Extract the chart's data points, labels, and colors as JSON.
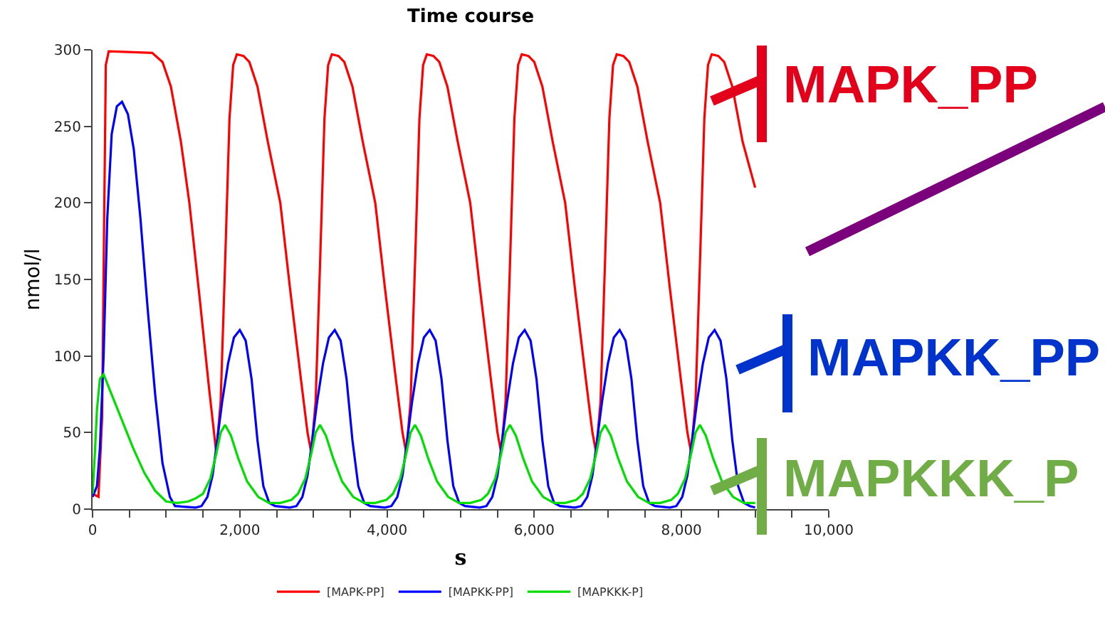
{
  "chart_data": {
    "type": "line",
    "title": "Time course",
    "xlabel": "s",
    "ylabel": "nmol/l",
    "xlim": [
      0,
      10000
    ],
    "xticks": [
      {
        "value": 0,
        "label": "0"
      },
      {
        "value": 500,
        "label": null
      },
      {
        "value": 1000,
        "label": null
      },
      {
        "value": 1500,
        "label": null
      },
      {
        "value": 2000,
        "label": "2,000"
      },
      {
        "value": 2500,
        "label": null
      },
      {
        "value": 3000,
        "label": null
      },
      {
        "value": 3500,
        "label": null
      },
      {
        "value": 4000,
        "label": "4,000"
      },
      {
        "value": 4500,
        "label": null
      },
      {
        "value": 5000,
        "label": null
      },
      {
        "value": 5500,
        "label": null
      },
      {
        "value": 6000,
        "label": "6,000"
      },
      {
        "value": 6500,
        "label": null
      },
      {
        "value": 7000,
        "label": null
      },
      {
        "value": 7500,
        "label": null
      },
      {
        "value": 8000,
        "label": "8,000"
      },
      {
        "value": 8500,
        "label": null
      },
      {
        "value": 9000,
        "label": null
      },
      {
        "value": 9500,
        "label": null
      },
      {
        "value": 10000,
        "label": "10,000"
      }
    ],
    "ylim": [
      0,
      300
    ],
    "yticks": [
      0,
      50,
      100,
      150,
      200,
      250,
      300
    ],
    "grid": false,
    "legend": "bottom",
    "marker": "none",
    "line_style": "solid",
    "annotations": [
      "MAPK_PP",
      "MAPKK_PP",
      "MAPKKK_P"
    ],
    "series": [
      {
        "name": "[MAPK-PP]",
        "color": "#ff0000",
        "x": [
          0,
          80,
          130,
          160,
          180,
          220,
          810,
          950,
          1064,
          1200,
          1315,
          1450,
          1580,
          1680,
          1740,
          1800,
          1860,
          1910,
          1960,
          2050,
          2130,
          2240,
          2380,
          2550,
          2680,
          2830,
          2920,
          2970,
          3030,
          3090,
          3150,
          3200,
          3250,
          3340,
          3420,
          3530,
          3670,
          3840,
          3970,
          4120,
          4210,
          4260,
          4320,
          4380,
          4440,
          4490,
          4540,
          4630,
          4710,
          4820,
          4960,
          5130,
          5260,
          5410,
          5500,
          5550,
          5610,
          5670,
          5730,
          5780,
          5830,
          5920,
          6000,
          6110,
          6250,
          6420,
          6550,
          6700,
          6790,
          6840,
          6900,
          6960,
          7020,
          7070,
          7120,
          7210,
          7290,
          7400,
          7540,
          7710,
          7840,
          7990,
          8080,
          8130,
          8190,
          8250,
          8310,
          8360,
          8410,
          8500,
          8580,
          8690,
          8830,
          9000
        ],
        "values": [
          10,
          8,
          60,
          200,
          290,
          299,
          298,
          292,
          276,
          240,
          200,
          140,
          80,
          37,
          70,
          160,
          255,
          290,
          297,
          296,
          292,
          276,
          240,
          200,
          145,
          85,
          50,
          37,
          70,
          160,
          255,
          290,
          297,
          296,
          292,
          276,
          240,
          200,
          145,
          85,
          50,
          37,
          70,
          160,
          255,
          290,
          297,
          296,
          292,
          276,
          240,
          200,
          145,
          85,
          50,
          37,
          70,
          160,
          255,
          290,
          297,
          296,
          292,
          276,
          240,
          200,
          145,
          85,
          50,
          37,
          70,
          160,
          255,
          290,
          297,
          296,
          292,
          276,
          240,
          200,
          145,
          85,
          50,
          37,
          70,
          160,
          255,
          290,
          297,
          296,
          292,
          276,
          240,
          210
        ]
      },
      {
        "name": "[MAPKK-PP]",
        "color": "#0000ff",
        "x": [
          0,
          60,
          100,
          150,
          200,
          260,
          330,
          400,
          480,
          560,
          650,
          750,
          850,
          950,
          1050,
          1120,
          1400,
          1480,
          1560,
          1630,
          1680,
          1760,
          1840,
          1920,
          2000,
          2080,
          2160,
          2240,
          2320,
          2400,
          2480,
          2680,
          2770,
          2850,
          2920,
          2970,
          3050,
          3130,
          3210,
          3290,
          3370,
          3450,
          3530,
          3610,
          3690,
          3770,
          3970,
          4060,
          4140,
          4210,
          4260,
          4340,
          4420,
          4500,
          4580,
          4660,
          4740,
          4820,
          4900,
          4980,
          5060,
          5260,
          5350,
          5430,
          5500,
          5550,
          5630,
          5710,
          5790,
          5870,
          5950,
          6030,
          6110,
          6190,
          6270,
          6350,
          6550,
          6640,
          6720,
          6790,
          6840,
          6920,
          7000,
          7080,
          7160,
          7240,
          7320,
          7400,
          7480,
          7560,
          7640,
          7840,
          7930,
          8010,
          8080,
          8130,
          8210,
          8290,
          8370,
          8450,
          8530,
          8610,
          8690,
          8770,
          8850,
          8930,
          9000
        ],
        "values": [
          8,
          15,
          40,
          100,
          190,
          245,
          263,
          266,
          258,
          235,
          190,
          130,
          75,
          30,
          8,
          2,
          1,
          2,
          8,
          22,
          40,
          70,
          95,
          112,
          117,
          110,
          85,
          45,
          15,
          4,
          2,
          1,
          2,
          8,
          22,
          40,
          70,
          95,
          112,
          117,
          110,
          85,
          45,
          15,
          4,
          2,
          1,
          2,
          8,
          22,
          40,
          70,
          95,
          112,
          117,
          110,
          85,
          45,
          15,
          4,
          2,
          1,
          2,
          8,
          22,
          40,
          70,
          95,
          112,
          117,
          110,
          85,
          45,
          15,
          4,
          2,
          1,
          2,
          8,
          22,
          40,
          70,
          95,
          112,
          117,
          110,
          85,
          45,
          15,
          4,
          2,
          1,
          2,
          8,
          22,
          40,
          70,
          95,
          112,
          117,
          110,
          85,
          45,
          15,
          4,
          2,
          1
        ]
      },
      {
        "name": "[MAPKKK-P]",
        "color": "#00dd00",
        "x": [
          0,
          30,
          60,
          100,
          150,
          250,
          400,
          550,
          700,
          850,
          1000,
          1150,
          1300,
          1400,
          1500,
          1600,
          1680,
          1740,
          1800,
          1880,
          1980,
          2100,
          2250,
          2400,
          2550,
          2700,
          2790,
          2890,
          2970,
          3030,
          3090,
          3170,
          3270,
          3390,
          3540,
          3690,
          3840,
          3990,
          4080,
          4180,
          4260,
          4320,
          4380,
          4460,
          4560,
          4680,
          4830,
          4980,
          5130,
          5280,
          5370,
          5470,
          5550,
          5610,
          5670,
          5750,
          5850,
          5970,
          6120,
          6270,
          6420,
          6570,
          6660,
          6760,
          6840,
          6900,
          6960,
          7040,
          7140,
          7260,
          7410,
          7560,
          7710,
          7860,
          7950,
          8050,
          8130,
          8190,
          8250,
          8330,
          8430,
          8550,
          8700,
          8850,
          9000
        ],
        "values": [
          10,
          35,
          65,
          85,
          88,
          76,
          58,
          40,
          24,
          12,
          5,
          4,
          5,
          7,
          10,
          20,
          36,
          50,
          55,
          48,
          33,
          18,
          8,
          4,
          4,
          6,
          10,
          20,
          36,
          50,
          55,
          48,
          33,
          18,
          8,
          4,
          4,
          6,
          10,
          20,
          36,
          50,
          55,
          48,
          33,
          18,
          8,
          4,
          4,
          6,
          10,
          20,
          36,
          50,
          55,
          48,
          33,
          18,
          8,
          4,
          4,
          6,
          10,
          20,
          36,
          50,
          55,
          48,
          33,
          18,
          8,
          4,
          4,
          6,
          10,
          20,
          36,
          50,
          55,
          48,
          33,
          18,
          8,
          4,
          4
        ]
      }
    ]
  }
}
